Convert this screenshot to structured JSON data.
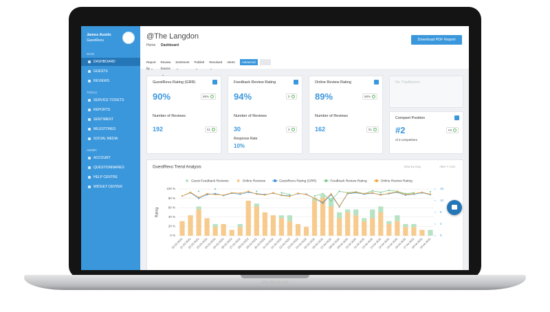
{
  "device": "MacBook Air",
  "sidebar": {
    "user": "James Austin",
    "account": "GuestRevu",
    "sections": [
      {
        "heading": "MAIN",
        "items": [
          "DASHBOARD",
          "GUESTS",
          "REVIEWS"
        ]
      },
      {
        "heading": "TOOLS",
        "items": [
          "SERVICE TICKETS",
          "REPORTS",
          "SENTIMENT",
          "MILESTONES",
          "SOCIAL MEDIA"
        ]
      },
      {
        "heading": "ADMIN",
        "items": [
          "ACCOUNT",
          "QUESTIONNAIRES",
          "HELP CENTRE",
          "WIDGET CENTER"
        ]
      }
    ]
  },
  "header": {
    "title": "@The Langdon",
    "breadcrumb": [
      "Home",
      "Dashboard"
    ],
    "button": "Download PDF Report"
  },
  "filters": [
    "Report by",
    "Review Source",
    "Sentiment",
    "Publish",
    "Resolved",
    "Alerts"
  ],
  "advanced_filters": "Advanced Filters",
  "cards": [
    {
      "title": "GuestRevu Rating (GRR)",
      "rating": "90%",
      "rating_badge": "88%",
      "reviews_label": "Number of Reviews",
      "reviews": "192",
      "reviews_badge": "51"
    },
    {
      "title": "Feedback Review Rating",
      "rating": "94%",
      "rating_badge": "0",
      "reviews_label": "Number of Reviews",
      "reviews": "30",
      "reviews_badge": "0",
      "response_label": "Response Rate",
      "response": "10%"
    },
    {
      "title": "Online Review Rating",
      "rating": "89%",
      "rating_badge": "88%",
      "reviews_label": "Number of Reviews",
      "reviews": "162",
      "reviews_badge": "51"
    }
  ],
  "tripadvisor": "No TripAdvisor",
  "compset": {
    "title": "Compset Position",
    "position": "#2",
    "note": "of 3 competitors",
    "badge": "#3"
  },
  "trend": {
    "title": "GuestRevu Trend Analysis",
    "view_by": "View by Day",
    "alter_axis": "Alter Y Axis",
    "chart": {
      "type": "bar_line",
      "y_label": "Rating",
      "stacked": true,
      "categories": [
        "20-03-2022",
        "21-03-2022",
        "22-03-2022",
        "23-03-2022",
        "24-03-2022",
        "25-03-2022",
        "26-03-2022",
        "27-03-2022",
        "28-03-2022",
        "29-03-2022",
        "30-03-2022",
        "31-03-2022",
        "01-04-2022",
        "02-04-2022",
        "03-04-2022",
        "04-04-2022",
        "05-04-2022",
        "06-04-2022",
        "07-04-2022",
        "08-04-2022",
        "09-04-2022",
        "10-04-2022",
        "11-04-2022",
        "12-04-2022",
        "13-04-2022",
        "14-04-2022",
        "15-04-2022",
        "16-04-2022",
        "17-04-2022",
        "18-04-2022",
        "19-04-2022"
      ],
      "ylim": [
        0,
        100
      ],
      "yticks": [
        {
          "value": 0,
          "label": "0 %"
        },
        {
          "value": 20,
          "label": "20 %"
        },
        {
          "value": 40,
          "label": "40 %"
        },
        {
          "value": 60,
          "label": "60 %"
        },
        {
          "value": 80,
          "label": "80 %"
        },
        {
          "value": 100,
          "label": "100 %"
        }
      ],
      "y2lim": [
        0,
        16
      ],
      "y2ticks": [
        0,
        4,
        8,
        12,
        16
      ],
      "series": [
        {
          "name": "Online Reviews",
          "type": "bar",
          "axis": "y2",
          "color": "#f7ca8d",
          "values": [
            5,
            7,
            9,
            6,
            3,
            4,
            2,
            3,
            12,
            10,
            8,
            7,
            6,
            5,
            4,
            3,
            12,
            13,
            10,
            6,
            8,
            7,
            5,
            6,
            8,
            4,
            5,
            3,
            3,
            2,
            0
          ]
        },
        {
          "name": "Guest Feedback Reviews",
          "type": "bar",
          "axis": "y2",
          "color": "#b8e2c4",
          "values": [
            0,
            0,
            1,
            0,
            1,
            0,
            0,
            1,
            0,
            1,
            0,
            0,
            1,
            2,
            0,
            0,
            1,
            1,
            3,
            2,
            1,
            2,
            1,
            3,
            2,
            1,
            2,
            1,
            1,
            0,
            2
          ]
        },
        {
          "name": "GuestRevu Rating (GRR)",
          "type": "line",
          "color": "#3b8fd8",
          "values": [
            85,
            92,
            80,
            88,
            90,
            86,
            91,
            89,
            93,
            90,
            88,
            91,
            87,
            85,
            90,
            89,
            80,
            70,
            88,
            62,
            90,
            92,
            89,
            91,
            88,
            90,
            93,
            87,
            89,
            92,
            88
          ]
        },
        {
          "name": "Feedback Review Rating",
          "type": "line",
          "color": "#7cc98f",
          "values": [
            null,
            null,
            95,
            null,
            100,
            null,
            null,
            90,
            null,
            95,
            null,
            null,
            92,
            88,
            null,
            null,
            85,
            90,
            75,
            95,
            92,
            94,
            90,
            96,
            93,
            97,
            95,
            90,
            92,
            null,
            94
          ]
        },
        {
          "name": "Online Review Rating",
          "type": "line",
          "color": "#f0a33b",
          "values": [
            85,
            93,
            82,
            90,
            88,
            87,
            92,
            91,
            95,
            89,
            87,
            92,
            86,
            84,
            91,
            88,
            80,
            72,
            90,
            63,
            91,
            93,
            90,
            92,
            87,
            91,
            94,
            88,
            90,
            93,
            89
          ]
        }
      ],
      "legend_order": [
        1,
        0,
        2,
        3,
        4
      ]
    }
  }
}
